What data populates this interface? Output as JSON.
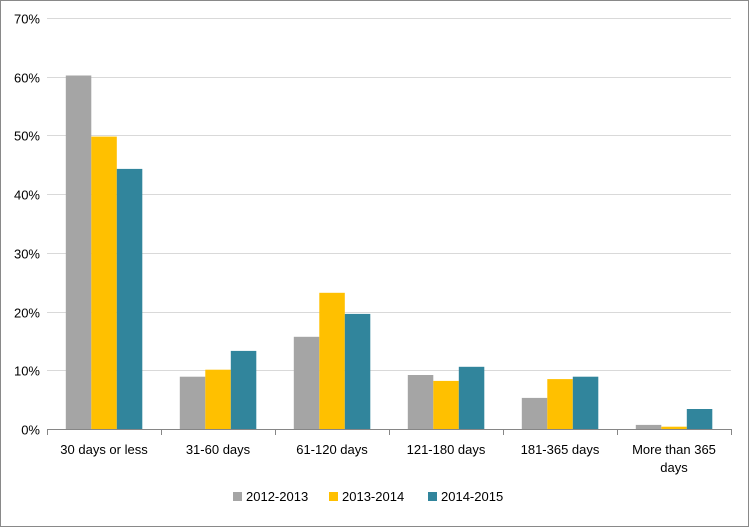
{
  "chart_data": {
    "type": "bar",
    "categories": [
      [
        "30 days or less"
      ],
      [
        "31-60 days"
      ],
      [
        "61-120 days"
      ],
      [
        "121-180 days"
      ],
      [
        "181-365 days"
      ],
      [
        "More than 365",
        "days"
      ]
    ],
    "series": [
      {
        "name": "2012-2013",
        "color": "#a5a5a5",
        "values": [
          60.2,
          8.9,
          15.7,
          9.2,
          5.3,
          0.7
        ]
      },
      {
        "name": "2013-2014",
        "color": "#ffc000",
        "values": [
          49.8,
          10.1,
          23.2,
          8.2,
          8.5,
          0.4
        ]
      },
      {
        "name": "2014-2015",
        "color": "#31859c",
        "values": [
          44.3,
          13.3,
          19.6,
          10.6,
          8.9,
          3.4
        ]
      }
    ],
    "ylim": [
      0,
      70
    ],
    "yticks": [
      0,
      10,
      20,
      30,
      40,
      50,
      60,
      70
    ],
    "ytick_labels": [
      "0%",
      "10%",
      "20%",
      "30%",
      "40%",
      "50%",
      "60%",
      "70%"
    ],
    "grid": true,
    "legend_position": "bottom",
    "gridline_color": "#d9d9d9",
    "axis_color": "#868686",
    "text_color": "#000000"
  }
}
